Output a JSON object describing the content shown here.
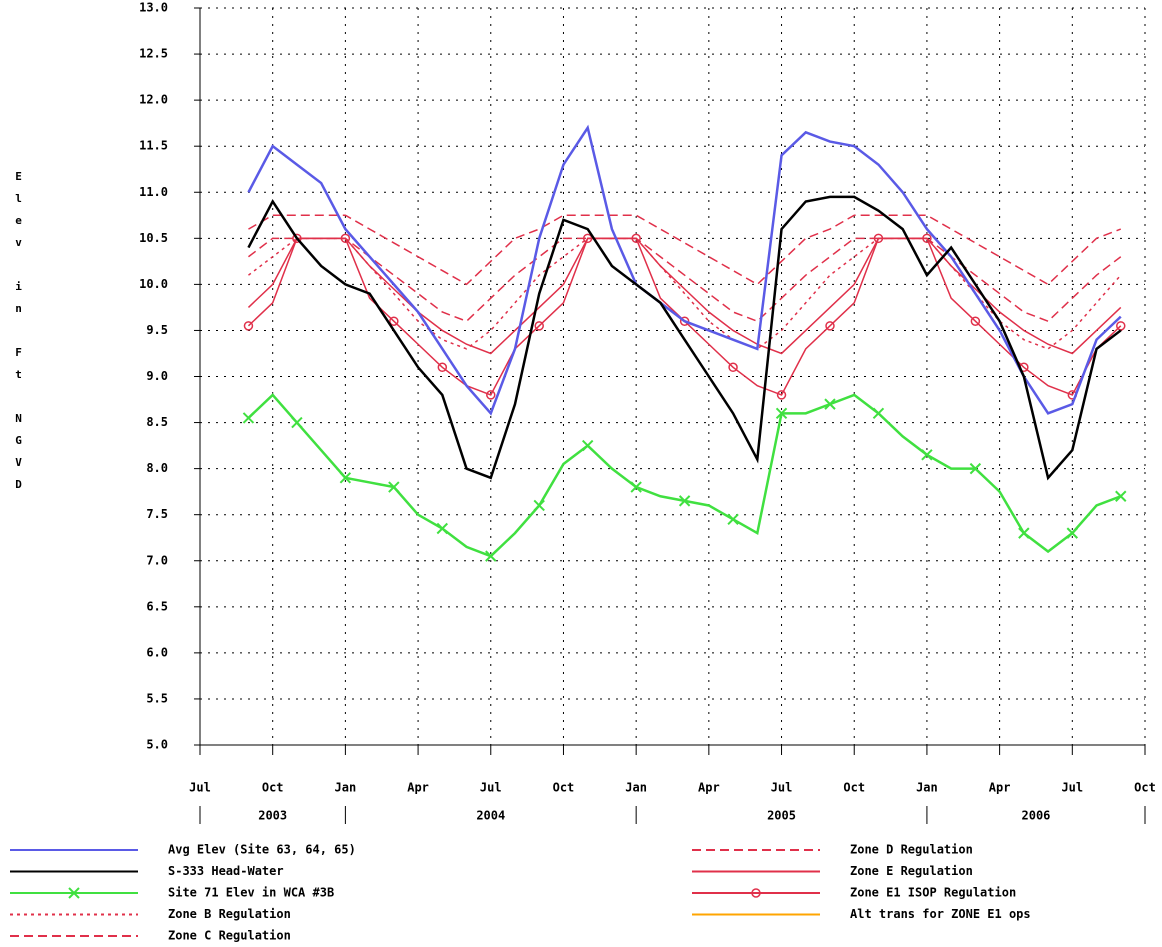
{
  "chart_data": {
    "type": "line",
    "ylabel": "Elev in Ft NGVD",
    "x": [
      "2003-09",
      "2003-10",
      "2003-11",
      "2003-12",
      "2004-01",
      "2004-02",
      "2004-03",
      "2004-04",
      "2004-05",
      "2004-06",
      "2004-07",
      "2004-08",
      "2004-09",
      "2004-10",
      "2004-11",
      "2004-12",
      "2005-01",
      "2005-02",
      "2005-03",
      "2005-04",
      "2005-05",
      "2005-06",
      "2005-07",
      "2005-08",
      "2005-09",
      "2005-10",
      "2005-11",
      "2005-12",
      "2006-01",
      "2006-02",
      "2006-03",
      "2006-04",
      "2006-05",
      "2006-06",
      "2006-07",
      "2006-08",
      "2006-09"
    ],
    "xlim": [
      "2003-07",
      "2006-10"
    ],
    "xticks": [
      {
        "value": "2003-07",
        "label": "Jul"
      },
      {
        "value": "2003-10",
        "label": "Oct"
      },
      {
        "value": "2004-01",
        "label": "Jan"
      },
      {
        "value": "2004-04",
        "label": "Apr"
      },
      {
        "value": "2004-07",
        "label": "Jul"
      },
      {
        "value": "2004-10",
        "label": "Oct"
      },
      {
        "value": "2005-01",
        "label": "Jan"
      },
      {
        "value": "2005-04",
        "label": "Apr"
      },
      {
        "value": "2005-07",
        "label": "Jul"
      },
      {
        "value": "2005-10",
        "label": "Oct"
      },
      {
        "value": "2006-01",
        "label": "Jan"
      },
      {
        "value": "2006-04",
        "label": "Apr"
      },
      {
        "value": "2006-07",
        "label": "Jul"
      },
      {
        "value": "2006-10",
        "label": "Oct"
      }
    ],
    "x_years": [
      "2003",
      "2004",
      "2005",
      "2006"
    ],
    "ylim": [
      5,
      13
    ],
    "yticks": [
      {
        "value": 5,
        "label": "5.0"
      },
      {
        "value": 5.5,
        "label": "5.5"
      },
      {
        "value": 6,
        "label": "6.0"
      },
      {
        "value": 6.5,
        "label": "6.5"
      },
      {
        "value": 7,
        "label": "7.0"
      },
      {
        "value": 7.5,
        "label": "7.5"
      },
      {
        "value": 8,
        "label": "8.0"
      },
      {
        "value": 8.5,
        "label": "8.5"
      },
      {
        "value": 9,
        "label": "9.0"
      },
      {
        "value": 9.5,
        "label": "9.5"
      },
      {
        "value": 10,
        "label": "10.0"
      },
      {
        "value": 10.5,
        "label": "10.5"
      },
      {
        "value": 11,
        "label": "11.0"
      },
      {
        "value": 11.5,
        "label": "11.5"
      },
      {
        "value": 12,
        "label": "12.0"
      },
      {
        "value": 12.5,
        "label": "12.5"
      },
      {
        "value": 13,
        "label": "13.0"
      }
    ],
    "grid": true,
    "series": [
      {
        "name": "Avg Elev (Site 63, 64, 65)",
        "color": "#5a5ae6",
        "dash": "solid",
        "values": [
          11.0,
          11.5,
          11.3,
          11.1,
          10.6,
          10.3,
          10.0,
          9.7,
          9.3,
          8.9,
          8.6,
          9.3,
          10.5,
          11.3,
          11.7,
          10.6,
          10.0,
          9.8,
          9.6,
          9.5,
          9.4,
          9.3,
          11.4,
          11.65,
          11.55,
          11.5,
          11.3,
          11.0,
          10.6,
          10.3,
          9.9,
          9.5,
          9.0,
          8.6,
          8.7,
          9.4,
          9.65
        ]
      },
      {
        "name": "S-333 Head-Water",
        "color": "#000000",
        "dash": "solid",
        "values": [
          10.4,
          10.9,
          10.5,
          10.2,
          10.0,
          9.9,
          9.5,
          9.1,
          8.8,
          8.0,
          7.9,
          8.7,
          9.9,
          10.7,
          10.6,
          10.2,
          10.0,
          9.8,
          9.4,
          9.0,
          8.6,
          8.1,
          10.6,
          10.9,
          10.95,
          10.95,
          10.8,
          10.6,
          10.1,
          10.4,
          10.0,
          9.6,
          9.0,
          7.9,
          8.2,
          9.3,
          9.5
        ]
      },
      {
        "name": "Site 71 Elev in WCA #3B",
        "color": "#40e040",
        "dash": "solid",
        "marker": "x",
        "values": [
          8.55,
          8.8,
          8.5,
          8.2,
          7.9,
          7.85,
          7.8,
          7.5,
          7.35,
          7.15,
          7.05,
          7.3,
          7.6,
          8.05,
          8.25,
          8.0,
          7.8,
          7.7,
          7.65,
          7.6,
          7.45,
          7.3,
          8.6,
          8.6,
          8.7,
          8.8,
          8.6,
          8.35,
          8.15,
          8.0,
          8.0,
          7.75,
          7.3,
          7.1,
          7.3,
          7.6,
          7.7
        ]
      },
      {
        "name": "Zone B Regulation",
        "color": "#e0304a",
        "dash": "dotted",
        "values": [
          10.1,
          10.3,
          10.5,
          10.5,
          10.5,
          10.2,
          9.9,
          9.6,
          9.4,
          9.3,
          9.5,
          9.8,
          10.1,
          10.3,
          10.5,
          10.5,
          10.5,
          10.2,
          9.9,
          9.6,
          9.4,
          9.3,
          9.5,
          9.8,
          10.1,
          10.3,
          10.5,
          10.5,
          10.5,
          10.2,
          9.9,
          9.6,
          9.4,
          9.3,
          9.5,
          9.8,
          10.1
        ]
      },
      {
        "name": "Zone C Regulation",
        "color": "#e0304a",
        "dash": "dashed",
        "values": [
          10.6,
          10.75,
          10.75,
          10.75,
          10.75,
          10.6,
          10.45,
          10.3,
          10.15,
          10.0,
          10.25,
          10.5,
          10.6,
          10.75,
          10.75,
          10.75,
          10.75,
          10.6,
          10.45,
          10.3,
          10.15,
          10.0,
          10.25,
          10.5,
          10.6,
          10.75,
          10.75,
          10.75,
          10.75,
          10.6,
          10.45,
          10.3,
          10.15,
          10.0,
          10.25,
          10.5,
          10.6
        ]
      },
      {
        "name": "Zone D Regulation",
        "color": "#e0304a",
        "dash": "dashed",
        "values": [
          10.3,
          10.5,
          10.5,
          10.5,
          10.5,
          10.3,
          10.1,
          9.9,
          9.7,
          9.6,
          9.85,
          10.1,
          10.3,
          10.5,
          10.5,
          10.5,
          10.5,
          10.3,
          10.1,
          9.9,
          9.7,
          9.6,
          9.85,
          10.1,
          10.3,
          10.5,
          10.5,
          10.5,
          10.5,
          10.3,
          10.1,
          9.9,
          9.7,
          9.6,
          9.85,
          10.1,
          10.3
        ]
      },
      {
        "name": "Zone E Regulation",
        "color": "#e0304a",
        "dash": "solid",
        "values": [
          9.75,
          10.0,
          10.5,
          10.5,
          10.5,
          10.2,
          9.95,
          9.7,
          9.5,
          9.35,
          9.25,
          9.5,
          9.75,
          10.0,
          10.5,
          10.5,
          10.5,
          10.2,
          9.95,
          9.7,
          9.5,
          9.35,
          9.25,
          9.5,
          9.75,
          10.0,
          10.5,
          10.5,
          10.5,
          10.2,
          9.95,
          9.7,
          9.5,
          9.35,
          9.25,
          9.5,
          9.75
        ]
      },
      {
        "name": "Zone E1 ISOP Regulation",
        "color": "#e0304a",
        "dash": "solid",
        "marker": "circle",
        "values": [
          9.55,
          9.8,
          10.5,
          10.5,
          10.5,
          9.85,
          9.6,
          9.35,
          9.1,
          8.9,
          8.8,
          9.3,
          9.55,
          9.8,
          10.5,
          10.5,
          10.5,
          9.85,
          9.6,
          9.35,
          9.1,
          8.9,
          8.8,
          9.3,
          9.55,
          9.8,
          10.5,
          10.5,
          10.5,
          9.85,
          9.6,
          9.35,
          9.1,
          8.9,
          8.8,
          9.3,
          9.55
        ]
      },
      {
        "name": "Alt trans for ZONE E1 ops",
        "color": "#ffa500",
        "dash": "solid",
        "values": [
          null,
          null,
          null,
          null,
          null,
          null,
          null,
          null,
          null,
          null,
          null,
          null,
          null,
          null,
          null,
          null,
          null,
          null,
          null,
          null,
          null,
          null,
          null,
          null,
          null,
          null,
          null,
          null,
          null,
          null,
          null,
          null,
          null,
          null,
          null,
          null,
          null
        ]
      }
    ]
  }
}
